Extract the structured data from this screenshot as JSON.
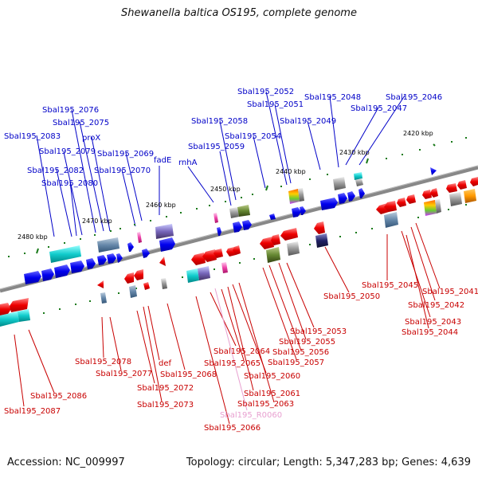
{
  "title": "Shewanella baltica OS195, complete genome",
  "accession": "Accession: NC_009997",
  "summary": "Topology: circular; Length: 5,347,283 bp; Genes: 4,639",
  "colors": {
    "top_label": "#0000c8",
    "bottom_label": "#c80000",
    "rna_label": "#e8a0d0",
    "backbone": "#808080",
    "tick": "#1a7a1a"
  },
  "scale_labels": [
    "2480 kbp",
    "2470 kbp",
    "2460 kbp",
    "2450 kbp",
    "2440 kbp",
    "2430 kbp",
    "2420 kbp"
  ],
  "top_labels": [
    "Sbal195_2083",
    "Sbal195_2082",
    "Sbal195_2080",
    "Sbal195_2079",
    "Sbal195_2076",
    "Sbal195_2075",
    "proX",
    "Sbal195_2070",
    "Sbal195_2069",
    "fadE",
    "rnhA",
    "Sbal195_2059",
    "Sbal195_2058",
    "Sbal195_2054",
    "Sbal195_2052",
    "Sbal195_2051",
    "Sbal195_2049",
    "Sbal195_2048",
    "Sbal195_2047",
    "Sbal195_2046"
  ],
  "bottom_labels": [
    "Sbal195_2087",
    "Sbal195_2086",
    "Sbal195_2078",
    "Sbal195_2077",
    "def",
    "Sbal195_2073",
    "Sbal195_2072",
    "Sbal195_2068",
    "Sbal195_2066",
    "Sbal195_R0060",
    "Sbal195_2065",
    "Sbal195_2064",
    "Sbal195_2063",
    "Sbal195_2061",
    "Sbal195_2060",
    "Sbal195_2057",
    "Sbal195_2056",
    "Sbal195_2055",
    "Sbal195_2053",
    "Sbal195_2050",
    "Sbal195_2045",
    "Sbal195_2044",
    "Sbal195_2043",
    "Sbal195_2042",
    "Sbal195_2041"
  ]
}
